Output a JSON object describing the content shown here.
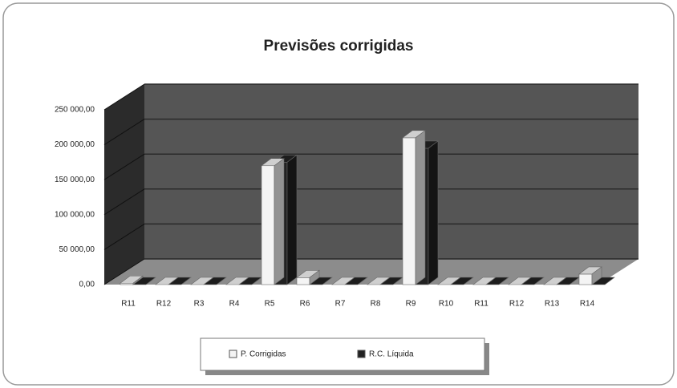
{
  "chart_data": {
    "type": "bar3d",
    "title": "Previsões corrigidas",
    "categories": [
      "R11",
      "R12",
      "R3",
      "R4",
      "R5",
      "R6",
      "R7",
      "R8",
      "R9",
      "R10",
      "R11",
      "R12",
      "R13",
      "R14"
    ],
    "series": [
      {
        "name": "P. Corrigidas",
        "color": "#f4f4f4",
        "values": [
          2000,
          0,
          0,
          0,
          170000,
          10000,
          0,
          0,
          210000,
          0,
          0,
          0,
          0,
          15000
        ]
      },
      {
        "name": "R.C. Líquida",
        "color": "#222222",
        "values": [
          0,
          0,
          0,
          0,
          175000,
          0,
          0,
          0,
          195000,
          0,
          0,
          0,
          0,
          0
        ]
      }
    ],
    "ylim": [
      0,
      250000
    ],
    "yticks": [
      {
        "value": 0,
        "label": "0,00"
      },
      {
        "value": 50000,
        "label": "50 000,00"
      },
      {
        "value": 100000,
        "label": "100 000,00"
      },
      {
        "value": 150000,
        "label": "150 000,00"
      },
      {
        "value": 200000,
        "label": "200 000,00"
      },
      {
        "value": 250000,
        "label": "250 000,00"
      }
    ],
    "grid": true
  }
}
